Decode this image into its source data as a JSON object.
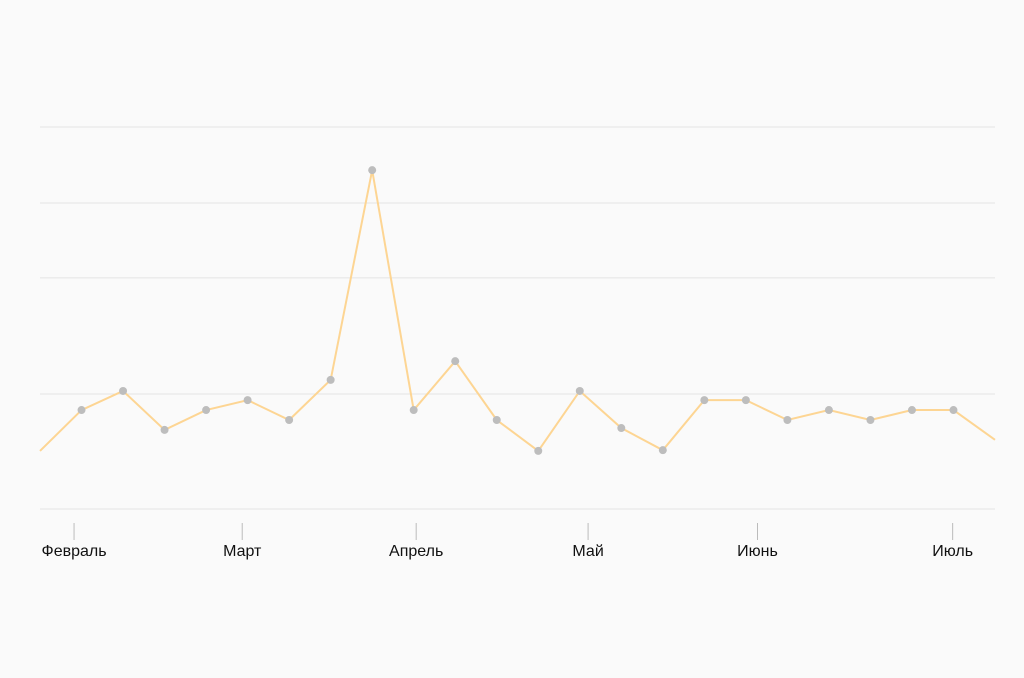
{
  "chart_data": {
    "type": "line",
    "x": [
      0,
      1,
      2,
      3,
      4,
      5,
      6,
      7,
      8,
      9,
      10,
      11,
      12,
      13,
      14,
      15,
      16,
      17,
      18,
      19,
      20,
      21,
      22,
      23
    ],
    "values": [
      15.2,
      25.9,
      30.9,
      20.7,
      25.9,
      28.5,
      23.3,
      33.8,
      88.7,
      25.9,
      38.7,
      23.3,
      15.2,
      30.9,
      21.2,
      15.4,
      28.5,
      28.5,
      23.3,
      25.9,
      23.3,
      25.9,
      25.9,
      18.1
    ],
    "color": "#fdd593",
    "marker_color": "#bdbdbd",
    "xlim": [
      0,
      23
    ],
    "xticks": [
      {
        "value": 0.82,
        "label": "Февраль"
      },
      {
        "value": 4.87,
        "label": "Март"
      },
      {
        "value": 9.06,
        "label": "Апрель"
      },
      {
        "value": 13.2,
        "label": "Май"
      },
      {
        "value": 17.28,
        "label": "Июнь"
      },
      {
        "value": 21.98,
        "label": "Июль"
      }
    ],
    "ylim": [
      0,
      100
    ],
    "yticks": [
      0,
      30.1,
      60.5,
      80.1,
      100
    ],
    "grid": true
  }
}
